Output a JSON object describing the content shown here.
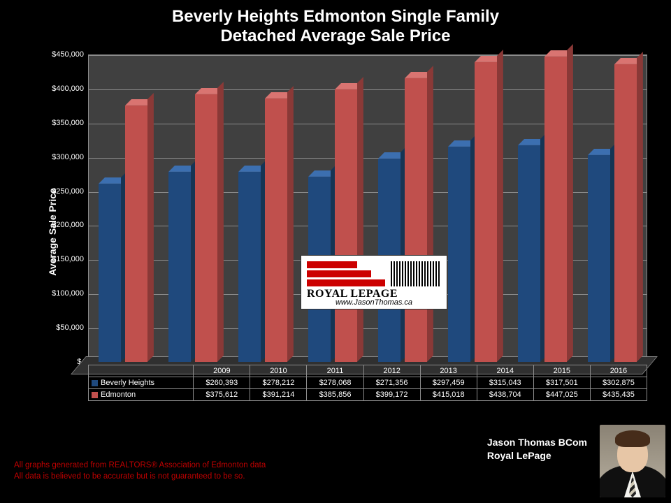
{
  "title_line1": "Beverly Heights Edmonton Single Family",
  "title_line2": "Detached Average Sale Price",
  "chart": {
    "type": "bar",
    "ylabel": "Average Sale Price",
    "ylim": [
      0,
      450000
    ],
    "ytick_step": 50000,
    "yticks_labels": [
      "$-",
      "$50,000",
      "$100,000",
      "$150,000",
      "$200,000",
      "$250,000",
      "$300,000",
      "$350,000",
      "$400,000",
      "$450,000"
    ],
    "categories": [
      "2009",
      "2010",
      "2011",
      "2012",
      "2013",
      "2014",
      "2015",
      "2016"
    ],
    "series": [
      {
        "name": "Beverly Heights",
        "color": "#1f497d",
        "values": [
          260393,
          278212,
          278068,
          271356,
          297459,
          315043,
          317501,
          302875
        ],
        "labels": [
          "$260,393",
          "$278,212",
          "$278,068",
          "$271,356",
          "$297,459",
          "$315,043",
          "$317,501",
          "$302,875"
        ]
      },
      {
        "name": "Edmonton",
        "color": "#c0504d",
        "values": [
          375612,
          391214,
          385856,
          399172,
          415018,
          438704,
          447025,
          435435
        ],
        "labels": [
          "$375,612",
          "$391,214",
          "$385,856",
          "$399,172",
          "$415,018",
          "$438,704",
          "$447,025",
          "$435,435"
        ]
      }
    ],
    "background_color": "#404040",
    "grid_color": "#8c8c8c",
    "page_background": "#000000",
    "title_fontsize": 24,
    "label_fontsize": 14,
    "tick_fontsize": 11,
    "bar_width": 0.7,
    "style_3d": true
  },
  "logo": {
    "brand": "ROYAL LEPAGE",
    "url": "www.JasonThomas.ca",
    "bar_color": "#cc0000",
    "background": "#ffffff"
  },
  "disclaimer_line1": "All graphs generated from REALTORS® Association of Edmonton data",
  "disclaimer_line2": "All data is believed to be accurate but is not guaranteed to be so.",
  "disclaimer_color": "#c00000",
  "author_line1": "Jason Thomas BCom",
  "author_line2": "Royal LePage"
}
